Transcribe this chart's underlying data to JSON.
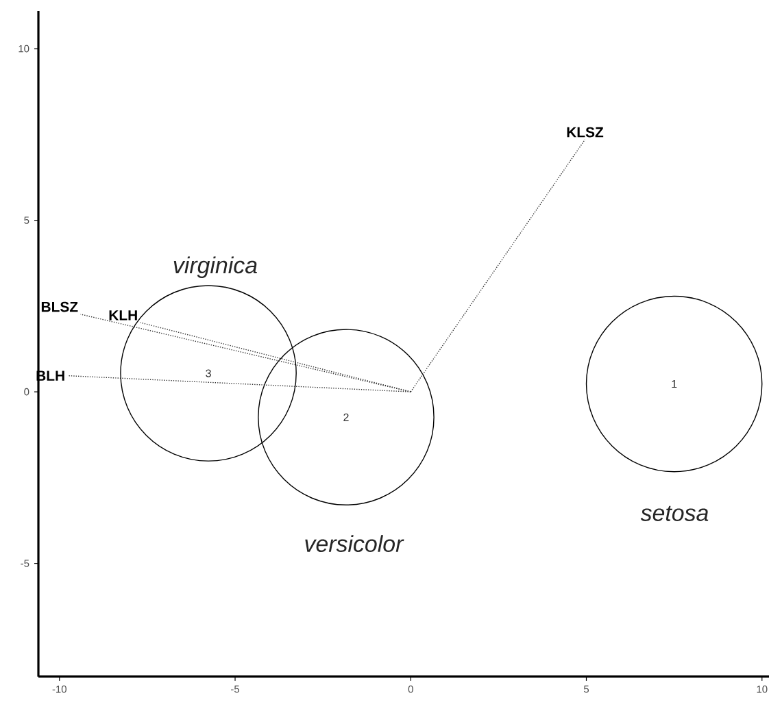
{
  "chart_data": {
    "type": "bubble",
    "xlim": [
      -10.6,
      10.2
    ],
    "ylim": [
      -8.3,
      11.1
    ],
    "xticks": [
      -10,
      -5,
      0,
      5,
      10
    ],
    "yticks": [
      -5,
      0,
      5,
      10
    ],
    "series": [
      {
        "color": "#000000",
        "marker": "circle",
        "x": [
          7.5,
          -1.84,
          -5.76
        ],
        "values": [
          0.23,
          -0.74,
          0.54
        ],
        "sizes": [
          1,
          1,
          1
        ]
      },
      {
        "type": "line",
        "name": "KLSZ",
        "color": "#333333",
        "line_style": "dotted",
        "marker": "none",
        "x": [
          0,
          4.96
        ],
        "values": [
          0,
          7.35
        ]
      },
      {
        "type": "line",
        "name": "BLSZ",
        "color": "#333333",
        "line_style": "dotted",
        "marker": "none",
        "x": [
          0,
          -9.4
        ],
        "values": [
          0,
          2.26
        ]
      },
      {
        "type": "line",
        "name": "KLH",
        "color": "#333333",
        "line_style": "dotted",
        "marker": "none",
        "x": [
          0,
          -7.7
        ],
        "values": [
          0,
          2.02
        ]
      },
      {
        "type": "line",
        "name": "BLH",
        "color": "#333333",
        "line_style": "dotted",
        "marker": "none",
        "x": [
          0,
          -9.77
        ],
        "values": [
          0,
          0.47
        ]
      }
    ],
    "annotations": [
      "*virginica*",
      "*versicolor*",
      "*setosa*",
      {
        "text": "1",
        "x": 7.5,
        "y": 0.23
      },
      {
        "text": "2",
        "x": -1.84,
        "y": -0.74
      },
      {
        "text": "3",
        "x": -5.76,
        "y": 0.54
      }
    ]
  }
}
